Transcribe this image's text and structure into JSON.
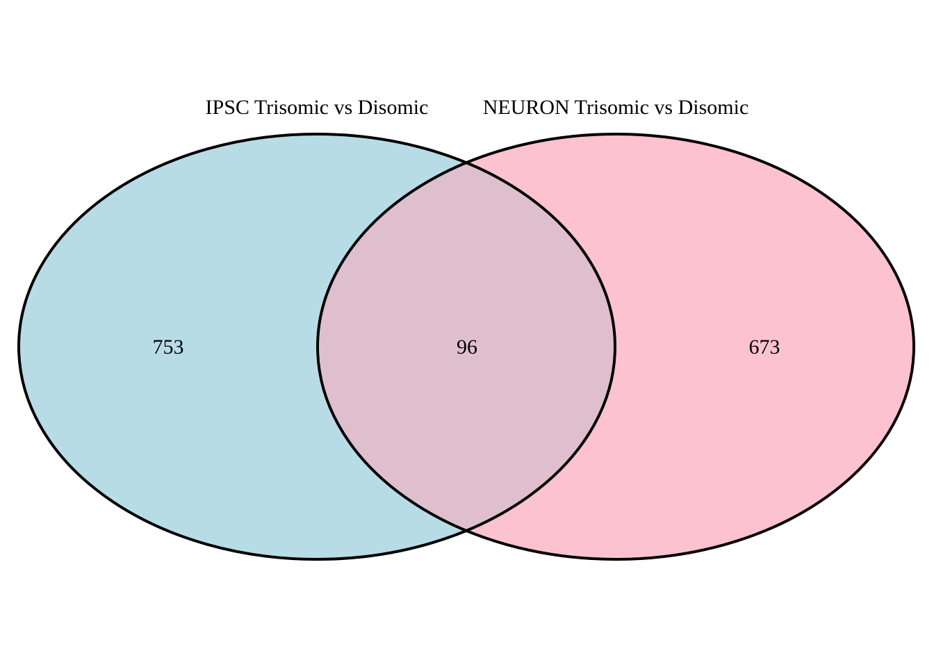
{
  "sets": [
    {
      "name": "IPSC Trisomic vs Disomic",
      "only_count": "753",
      "color": "#B8DCE6"
    },
    {
      "name": "NEURON Trisomic vs Disomic",
      "only_count": "673",
      "color": "#FDC2CF"
    }
  ],
  "intersection": {
    "count": "96",
    "color": "#DFBFCE"
  }
}
